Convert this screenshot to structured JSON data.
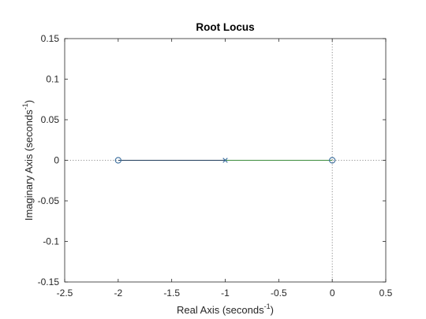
{
  "chart_data": {
    "type": "scatter",
    "title": "Root Locus",
    "xlabel": {
      "text": "Real Axis (seconds",
      "sup": "-1",
      "close": ")"
    },
    "ylabel": {
      "text": "Imaginary Axis (seconds",
      "sup": "-1",
      "close": ")"
    },
    "xlim": [
      -2.5,
      0.5
    ],
    "ylim": [
      -0.15,
      0.15
    ],
    "xticks": [
      -2.5,
      -2,
      -1.5,
      -1,
      -0.5,
      0,
      0.5
    ],
    "xtick_labels": [
      "-2.5",
      "-2",
      "-1.5",
      "-1",
      "-0.5",
      "0",
      "0.5"
    ],
    "yticks": [
      -0.15,
      -0.1,
      -0.05,
      0,
      0.05,
      0.1,
      0.15
    ],
    "ytick_labels": [
      "-0.15",
      "-0.1",
      "-0.05",
      "0",
      "0.05",
      "0.1",
      "0.15"
    ],
    "grid": false,
    "reference_lines": {
      "x": 0,
      "y": 0,
      "style": "dotted"
    },
    "series": [
      {
        "kind": "locus-branch",
        "x": [
          -2,
          -1
        ],
        "y": [
          0,
          0
        ],
        "color": "#1f3b5a"
      },
      {
        "kind": "locus-branch",
        "x": [
          -1,
          0
        ],
        "y": [
          0,
          0
        ],
        "color": "#3c8c3c"
      }
    ],
    "poles": [
      {
        "x": -1,
        "y": 0
      }
    ],
    "zeros": [
      {
        "x": -2,
        "y": 0
      },
      {
        "x": 0,
        "y": 0
      }
    ],
    "marker_color": "#3b6e9e"
  }
}
